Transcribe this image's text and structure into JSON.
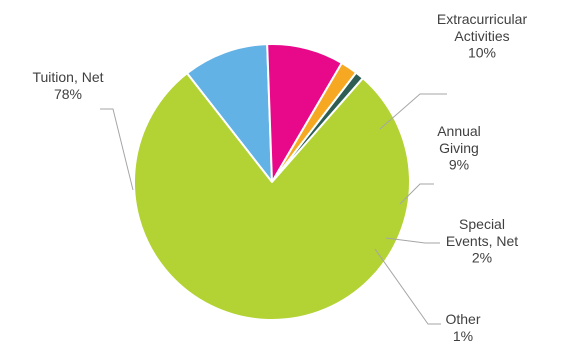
{
  "chart_data": {
    "type": "pie",
    "title": "",
    "legend": "none",
    "slices": [
      {
        "name": "Tuition, Net",
        "value": 78,
        "label_lines": [
          "Tuition, Net",
          "78%"
        ],
        "color": "#b3d234"
      },
      {
        "name": "Extracurricular Activities",
        "value": 10,
        "label_lines": [
          "Extracurricular",
          "Activities",
          "10%"
        ],
        "color": "#63b2e6"
      },
      {
        "name": "Annual Giving",
        "value": 9,
        "label_lines": [
          "Annual",
          "Giving",
          "9%"
        ],
        "color": "#e8098a"
      },
      {
        "name": "Special Events, Net",
        "value": 2,
        "label_lines": [
          "Special",
          "Events, Net",
          "2%"
        ],
        "color": "#f7a823"
      },
      {
        "name": "Other",
        "value": 1,
        "label_lines": [
          "Other",
          "1%"
        ],
        "color": "#2e5e53"
      }
    ]
  }
}
